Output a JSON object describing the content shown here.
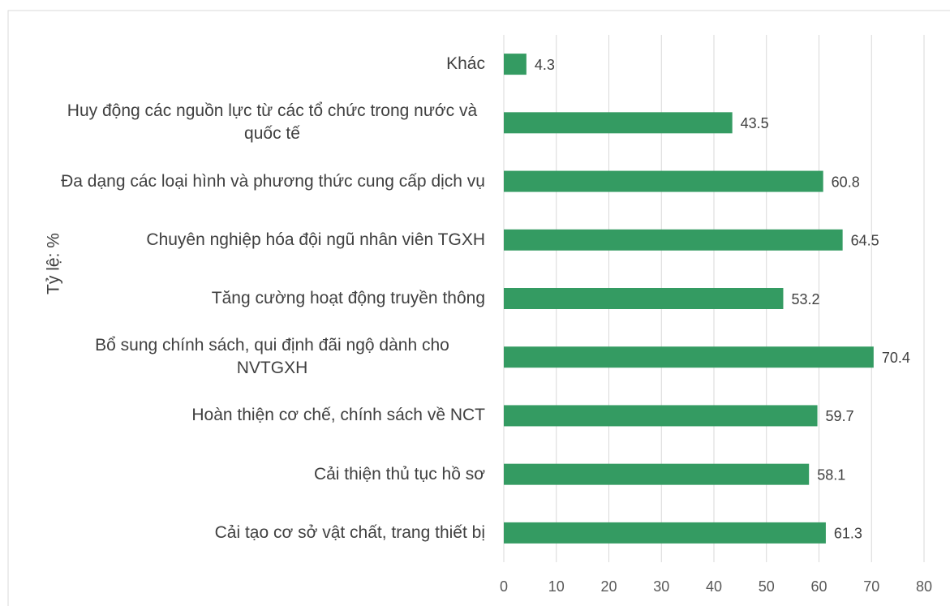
{
  "chart_data": {
    "type": "bar",
    "orientation": "horizontal",
    "y_axis_label": "Tỷ lệ: %",
    "categories": [
      "Khác",
      "Huy động các nguồn lực từ các tổ chức trong nước và quốc tế",
      "Đa dạng các loại hình và phương thức cung cấp dịch vụ",
      "Chuyên nghiệp hóa đội ngũ nhân viên TGXH",
      "Tăng cường hoạt động truyền thông",
      "Bổ sung chính sách, qui định đãi ngộ dành cho NVTGXH",
      "Hoàn thiện cơ chế, chính sách về NCT",
      "Cải thiện thủ tục hồ sơ",
      "Cải tạo cơ sở vật chất, trang thiết bị"
    ],
    "values": [
      4.3,
      43.5,
      60.8,
      64.5,
      53.2,
      70.4,
      59.7,
      58.1,
      61.3
    ],
    "color": "#349b62",
    "xlim": [
      0,
      80
    ],
    "xticks": [
      0,
      10,
      20,
      30,
      40,
      50,
      60,
      70,
      80
    ],
    "grid": true
  }
}
